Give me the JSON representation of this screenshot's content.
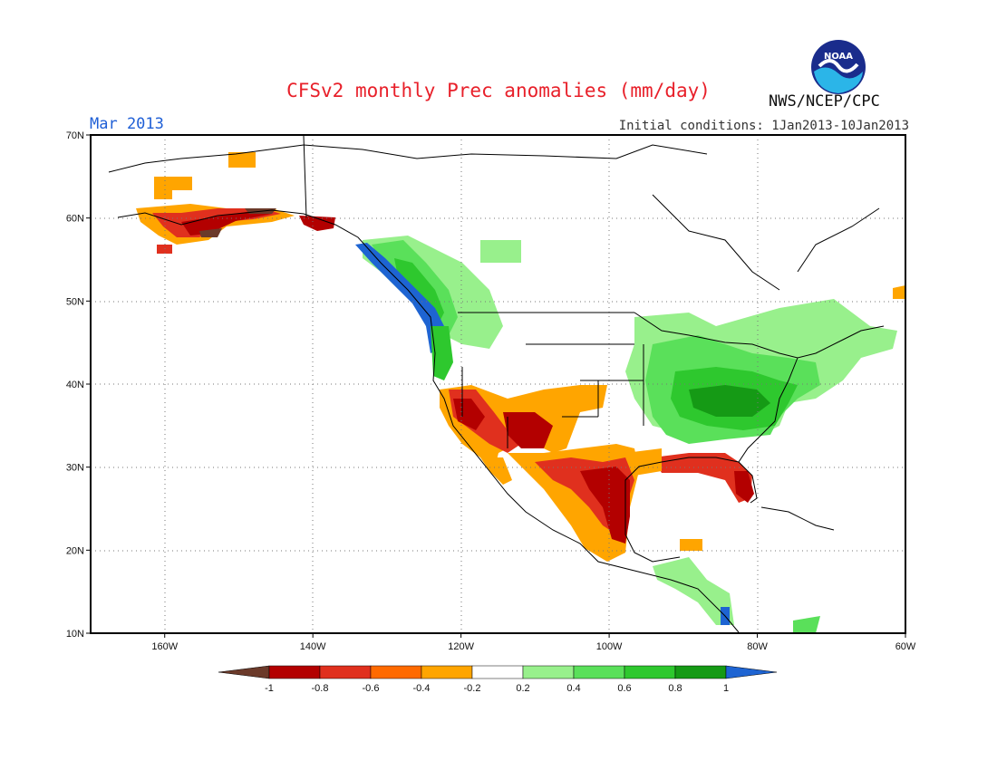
{
  "header": {
    "title": "CFSv2 monthly Prec anomalies (mm/day)",
    "month_label": "Mar 2013",
    "initial_conditions": "Initial conditions: 1Jan2013-10Jan2013",
    "agency": "NWS/NCEP/CPC",
    "logo_icon": "noaa-logo-icon",
    "logo_text": "NOAA"
  },
  "map": {
    "lat_range": [
      10,
      70
    ],
    "lon_range": [
      -170,
      -60
    ],
    "lat_ticks": [
      {
        "value": 10,
        "label": "10N"
      },
      {
        "value": 20,
        "label": "20N"
      },
      {
        "value": 30,
        "label": "30N"
      },
      {
        "value": 40,
        "label": "40N"
      },
      {
        "value": 50,
        "label": "50N"
      },
      {
        "value": 60,
        "label": "60N"
      },
      {
        "value": 70,
        "label": "70N"
      }
    ],
    "lon_ticks": [
      {
        "value": -160,
        "label": "160W"
      },
      {
        "value": -140,
        "label": "140W"
      },
      {
        "value": -120,
        "label": "120W"
      },
      {
        "value": -100,
        "label": "100W"
      },
      {
        "value": -80,
        "label": "80W"
      },
      {
        "value": -60,
        "label": "60W"
      }
    ],
    "grid": "dotted",
    "anomaly_regions": [
      {
        "region": "US Northeast / Great Lakes",
        "level": 0.6
      },
      {
        "region": "Ohio Valley / Tennessee Valley",
        "level": 0.7
      },
      {
        "region": "Southeast interior",
        "level": 0.5
      },
      {
        "region": "Eastern Canada",
        "level": 0.3
      },
      {
        "region": "Pacific Northwest coast",
        "level": 1.0
      },
      {
        "region": "Interior British Columbia",
        "level": 0.5
      },
      {
        "region": "California / Southwest",
        "level": -0.7
      },
      {
        "region": "Northern Mexico / New Mexico",
        "level": -0.6
      },
      {
        "region": "Southern Texas / Gulf coast Mexico",
        "level": -0.8
      },
      {
        "region": "Southern Plains",
        "level": -0.4
      },
      {
        "region": "Florida",
        "level": -0.8
      },
      {
        "region": "Gulf Coast US",
        "level": -0.6
      },
      {
        "region": "Southern Alaska",
        "level": -0.6
      },
      {
        "region": "Central America",
        "level": 0.3
      }
    ]
  },
  "legend": {
    "colors": [
      "#6b3a2a",
      "#b30000",
      "#e0301e",
      "#ff6a00",
      "#ffa500",
      "#ffffff",
      "#98f08c",
      "#5ae05a",
      "#2ec82e",
      "#159a15",
      "#1e64d2"
    ],
    "labels": [
      "-1",
      "-0.8",
      "-0.6",
      "-0.4",
      "-0.2",
      "0.2",
      "0.4",
      "0.6",
      "0.8",
      "1"
    ]
  }
}
